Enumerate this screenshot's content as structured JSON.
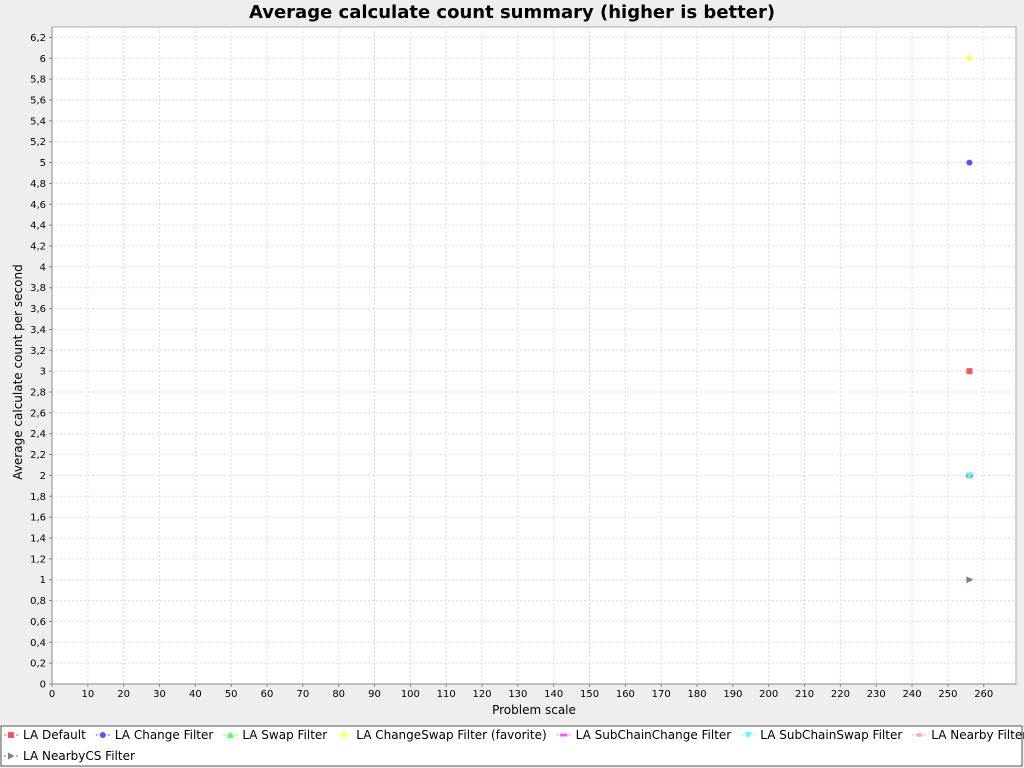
{
  "chart_data": {
    "type": "scatter",
    "title": "Average calculate count summary (higher is better)",
    "xlabel": "Problem scale",
    "ylabel": "Average calculate count per second",
    "xlim": [
      0,
      269
    ],
    "ylim": [
      0,
      6.3
    ],
    "x_ticks": [
      0,
      10,
      20,
      30,
      40,
      50,
      60,
      70,
      80,
      90,
      100,
      110,
      120,
      130,
      140,
      150,
      160,
      170,
      180,
      190,
      200,
      210,
      220,
      230,
      240,
      250,
      260
    ],
    "y_ticks": [
      "0",
      "0,2",
      "0,4",
      "0,6",
      "0,8",
      "1",
      "1,2",
      "1,4",
      "1,6",
      "1,8",
      "2",
      "2,2",
      "2,4",
      "2,6",
      "2,8",
      "3",
      "3,2",
      "3,4",
      "3,6",
      "3,8",
      "4",
      "4,2",
      "4,4",
      "4,6",
      "4,8",
      "5",
      "5,2",
      "5,4",
      "5,6",
      "5,8",
      "6",
      "6,2"
    ],
    "grid": true,
    "legend_position": "bottom",
    "series": [
      {
        "name": "LA Default",
        "color": "#ff5555",
        "marker": "square",
        "x": [
          256
        ],
        "y": [
          3
        ]
      },
      {
        "name": "LA Change Filter",
        "color": "#5555ff",
        "marker": "circle",
        "x": [
          256
        ],
        "y": [
          5
        ]
      },
      {
        "name": "LA Swap Filter",
        "color": "#55ff55",
        "marker": "triangle-up",
        "x": [
          256
        ],
        "y": [
          2
        ]
      },
      {
        "name": "LA ChangeSwap Filter (favorite)",
        "color": "#ffff55",
        "marker": "diamond",
        "x": [
          256
        ],
        "y": [
          6
        ]
      },
      {
        "name": "LA SubChainChange Filter",
        "color": "#ff55ff",
        "marker": "rect-h",
        "x": [
          256
        ],
        "y": [
          2
        ]
      },
      {
        "name": "LA SubChainSwap Filter",
        "color": "#55ffff",
        "marker": "triangle-down",
        "x": [
          256
        ],
        "y": [
          2
        ]
      },
      {
        "name": "LA Nearby Filter",
        "color": "#ffafaf",
        "marker": "ellipse",
        "x": [
          256
        ],
        "y": [
          1
        ]
      },
      {
        "name": "LA NearbyCS Filter",
        "color": "#808080",
        "marker": "triangle-right",
        "x": [
          256
        ],
        "y": [
          1
        ]
      }
    ]
  }
}
